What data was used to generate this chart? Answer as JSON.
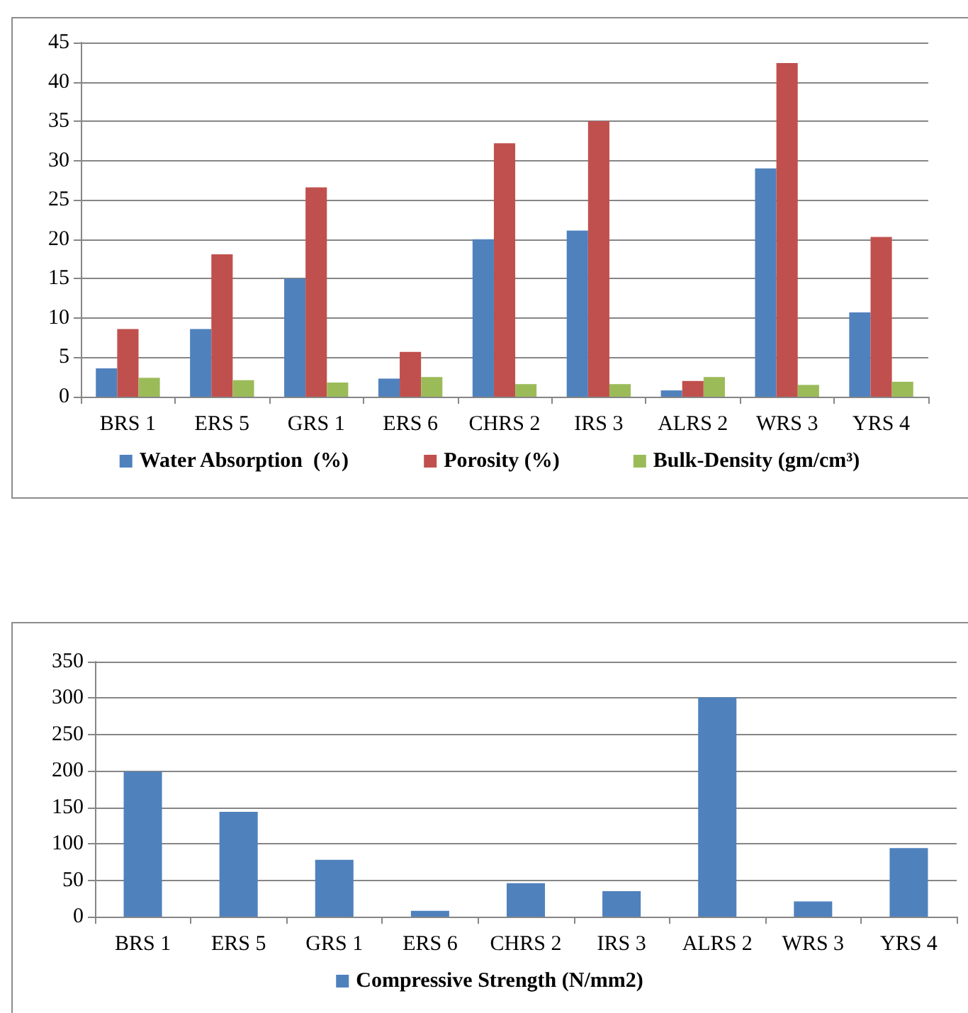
{
  "chart_data": [
    {
      "type": "bar",
      "categories": [
        "BRS 1",
        "ERS 5",
        "GRS 1",
        "ERS 6",
        "CHRS 2",
        "IRS 3",
        "ALRS 2",
        "WRS 3",
        "YRS 4"
      ],
      "series": [
        {
          "name": "Water Absorption  (%)",
          "color": "#4f81bd",
          "values": [
            3.6,
            8.6,
            15.0,
            2.3,
            20.0,
            21.1,
            0.8,
            29.0,
            10.7
          ]
        },
        {
          "name": "Porosity (%)",
          "color": "#c0504d",
          "values": [
            8.6,
            18.1,
            26.6,
            5.7,
            32.2,
            35.0,
            2.0,
            42.4,
            20.3
          ]
        },
        {
          "name": "Bulk-Density (gm/cm³)",
          "color": "#9bbb59",
          "values": [
            2.4,
            2.1,
            1.8,
            2.5,
            1.6,
            1.6,
            2.5,
            1.5,
            1.9
          ]
        }
      ],
      "ylim": [
        0,
        45
      ],
      "yticks": [
        0,
        5,
        10,
        15,
        20,
        25,
        30,
        35,
        40,
        45
      ],
      "grid": "y",
      "legend": "bottom"
    },
    {
      "type": "bar",
      "categories": [
        "BRS 1",
        "ERS 5",
        "GRS 1",
        "ERS 6",
        "CHRS 2",
        "IRS 3",
        "ALRS 2",
        "WRS 3",
        "YRS 4"
      ],
      "series": [
        {
          "name": "Compressive Strength (N/mm2)",
          "color": "#4f81bd",
          "values": [
            199,
            144,
            78,
            8,
            46,
            35,
            301,
            21,
            94
          ]
        }
      ],
      "ylim": [
        0,
        350
      ],
      "yticks": [
        0,
        50,
        100,
        150,
        200,
        250,
        300,
        350
      ],
      "grid": "y",
      "legend": "bottom"
    }
  ]
}
